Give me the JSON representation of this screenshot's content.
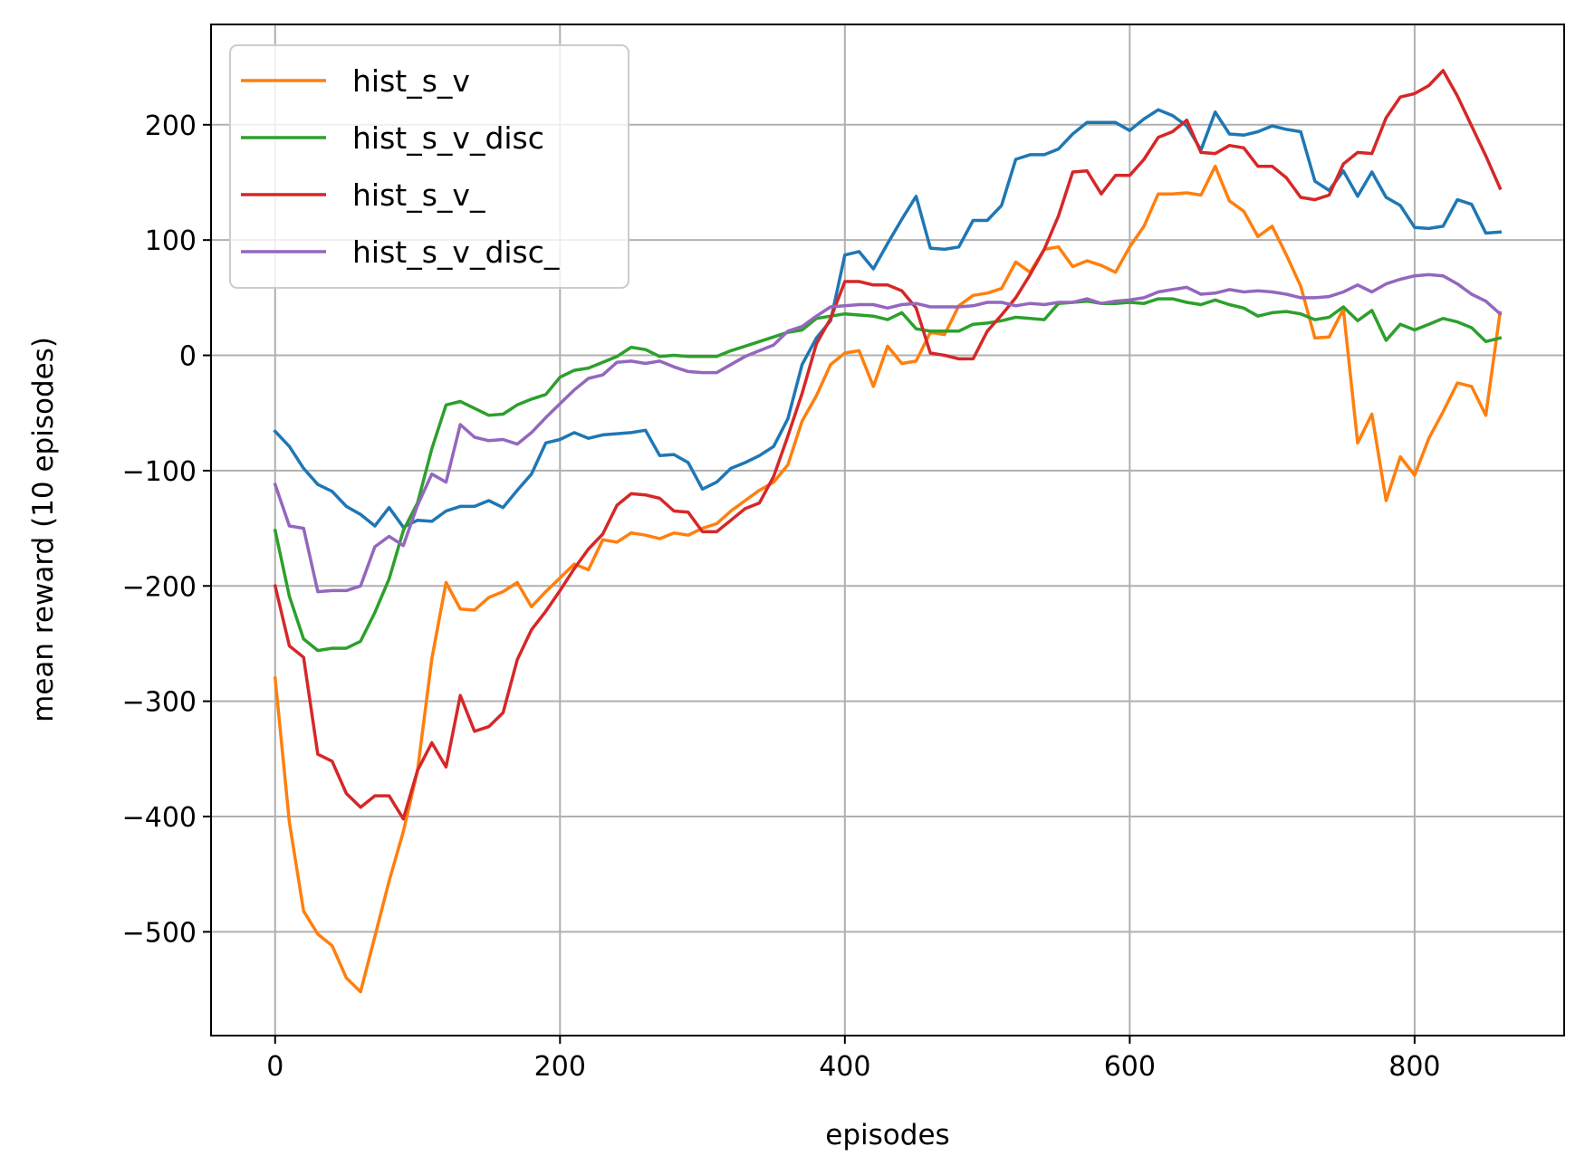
{
  "chart_data": {
    "type": "line",
    "title": "",
    "xlabel": "episodes",
    "ylabel": "mean reward (10 episodes)",
    "xlim": [
      -45,
      905
    ],
    "ylim": [
      -590,
      287
    ],
    "xticks": [
      0,
      200,
      400,
      600,
      800
    ],
    "yticks": [
      -500,
      -400,
      -300,
      -200,
      -100,
      0,
      100,
      200
    ],
    "xtick_labels": [
      "0",
      "200",
      "400",
      "600",
      "800"
    ],
    "ytick_labels": [
      "−500",
      "−400",
      "−300",
      "−200",
      "−100",
      "0",
      "100",
      "200"
    ],
    "grid": true,
    "legend_position": "upper left",
    "legend_order": [
      1,
      2,
      3,
      4
    ],
    "x": [
      0,
      10,
      20,
      30,
      40,
      50,
      60,
      70,
      80,
      90,
      100,
      110,
      120,
      130,
      140,
      150,
      160,
      170,
      180,
      190,
      200,
      210,
      220,
      230,
      240,
      250,
      260,
      270,
      280,
      290,
      300,
      310,
      320,
      330,
      340,
      350,
      360,
      370,
      380,
      390,
      400,
      410,
      420,
      430,
      440,
      450,
      460,
      470,
      480,
      490,
      500,
      510,
      520,
      530,
      540,
      550,
      560,
      570,
      580,
      590,
      600,
      610,
      620,
      630,
      640,
      650,
      660,
      670,
      680,
      690,
      700,
      710,
      720,
      730,
      740,
      750,
      760,
      770,
      780,
      790,
      800,
      810,
      820,
      830,
      840,
      850,
      860
    ],
    "series": [
      {
        "name": "",
        "color": "#1f77b4",
        "values": [
          -66,
          -79,
          -98,
          -112,
          -118,
          -131,
          -138,
          -148,
          -132,
          -149,
          -143,
          -144,
          -135,
          -131,
          -131,
          -126,
          -132,
          -117,
          -103,
          -76,
          -73,
          -67,
          -72,
          -69,
          -68,
          -67,
          -65,
          -87,
          -86,
          -93,
          -116,
          -110,
          -98,
          -93,
          -87,
          -79,
          -55,
          -8,
          15,
          30,
          87,
          90,
          75,
          97,
          118,
          138,
          93,
          92,
          94,
          117,
          117,
          130,
          170,
          174,
          174,
          179,
          192,
          202,
          202,
          202,
          195,
          205,
          213,
          208,
          199,
          178,
          211,
          192,
          191,
          194,
          199,
          196,
          194,
          151,
          143,
          160,
          138,
          159,
          137,
          130,
          111,
          110,
          112,
          135,
          131,
          106,
          107
        ]
      },
      {
        "name": "hist_s_v",
        "color": "#ff7f0e",
        "values": [
          -280,
          -405,
          -482,
          -502,
          -512,
          -540,
          -552,
          -504,
          -456,
          -413,
          -360,
          -263,
          -197,
          -220,
          -221,
          -210,
          -205,
          -197,
          -218,
          -205,
          -193,
          -181,
          -186,
          -160,
          -162,
          -154,
          -156,
          -159,
          -154,
          -156,
          -150,
          -146,
          -135,
          -126,
          -117,
          -110,
          -95,
          -57,
          -35,
          -8,
          2,
          4,
          -27,
          8,
          -7,
          -5,
          20,
          18,
          43,
          52,
          54,
          58,
          81,
          72,
          92,
          94,
          77,
          82,
          78,
          72,
          94,
          112,
          140,
          140,
          141,
          139,
          164,
          134,
          125,
          103,
          112,
          87,
          60,
          15,
          16,
          40,
          -76,
          -51,
          -126,
          -88,
          -104,
          -72,
          -49,
          -24,
          -27,
          -52,
          37
        ]
      },
      {
        "name": "hist_s_v_disc",
        "color": "#2ca02c",
        "values": [
          -152,
          -209,
          -246,
          -256,
          -254,
          -254,
          -248,
          -223,
          -194,
          -152,
          -128,
          -81,
          -43,
          -40,
          -46,
          -52,
          -51,
          -43,
          -38,
          -34,
          -19,
          -13,
          -11,
          -6,
          -1,
          7,
          5,
          -1,
          0,
          -1,
          -1,
          -1,
          4,
          8,
          12,
          16,
          20,
          22,
          32,
          34,
          36,
          35,
          34,
          31,
          37,
          23,
          21,
          21,
          21,
          27,
          28,
          30,
          33,
          32,
          31,
          45,
          46,
          47,
          45,
          45,
          46,
          45,
          49,
          49,
          46,
          44,
          48,
          44,
          41,
          34,
          37,
          38,
          36,
          31,
          33,
          42,
          30,
          39,
          13,
          27,
          22,
          27,
          32,
          29,
          24,
          12,
          15
        ]
      },
      {
        "name": "hist_s_v_",
        "color": "#d62728",
        "values": [
          -200,
          -252,
          -262,
          -346,
          -352,
          -380,
          -392,
          -382,
          -382,
          -402,
          -360,
          -336,
          -357,
          -295,
          -326,
          -322,
          -310,
          -264,
          -238,
          -222,
          -204,
          -185,
          -168,
          -155,
          -130,
          -120,
          -121,
          -124,
          -135,
          -136,
          -153,
          -153,
          -143,
          -133,
          -128,
          -105,
          -70,
          -33,
          10,
          32,
          64,
          64,
          61,
          61,
          56,
          41,
          2,
          0,
          -3,
          -3,
          21,
          35,
          50,
          70,
          92,
          121,
          159,
          160,
          140,
          156,
          156,
          170,
          189,
          194,
          204,
          176,
          175,
          182,
          180,
          164,
          164,
          154,
          137,
          135,
          139,
          166,
          176,
          175,
          206,
          224,
          227,
          234,
          247,
          225,
          199,
          173,
          145
        ]
      },
      {
        "name": "hist_s_v_disc_",
        "color": "#9467bd",
        "values": [
          -112,
          -148,
          -150,
          -205,
          -204,
          -204,
          -200,
          -166,
          -157,
          -165,
          -130,
          -103,
          -110,
          -60,
          -71,
          -74,
          -73,
          -77,
          -67,
          -54,
          -42,
          -30,
          -20,
          -17,
          -6,
          -5,
          -7,
          -5,
          -10,
          -14,
          -15,
          -15,
          -8,
          -1,
          4,
          9,
          21,
          25,
          34,
          42,
          43,
          44,
          44,
          41,
          44,
          45,
          42,
          42,
          42,
          43,
          46,
          46,
          43,
          45,
          44,
          46,
          46,
          49,
          45,
          47,
          48,
          50,
          55,
          57,
          59,
          53,
          54,
          57,
          55,
          56,
          55,
          53,
          50,
          50,
          51,
          55,
          61,
          55,
          62,
          66,
          69,
          70,
          69,
          62,
          53,
          47,
          36
        ]
      }
    ]
  }
}
